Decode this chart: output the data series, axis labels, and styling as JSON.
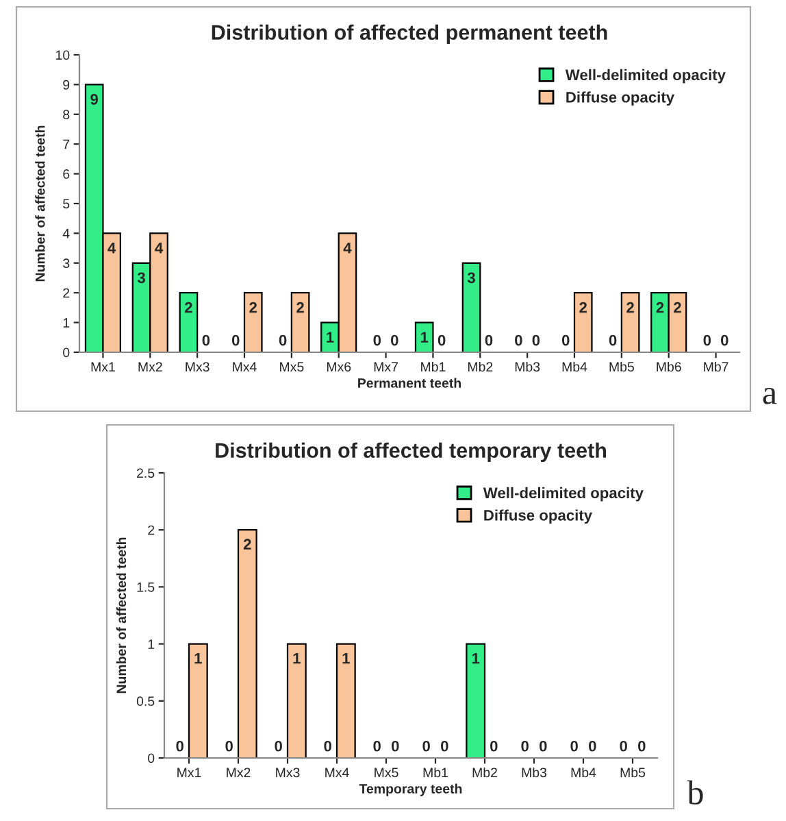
{
  "chart_data": [
    {
      "type": "bar",
      "title": "Distribution of affected permanent teeth",
      "xlabel": "Permanent teeth",
      "ylabel": "Number of affected teeth",
      "categories": [
        "Mx1",
        "Mx2",
        "Mx3",
        "Mx4",
        "Mx5",
        "Mx6",
        "Mx7",
        "Mb1",
        "Mb2",
        "Mb3",
        "Mb4",
        "Mb5",
        "Mb6",
        "Mb7"
      ],
      "series": [
        {
          "name": "Well-delimited opacity",
          "color": "#33ee88",
          "values": [
            9,
            3,
            2,
            0,
            0,
            1,
            0,
            1,
            3,
            0,
            0,
            0,
            2,
            0
          ]
        },
        {
          "name": "Diffuse opacity",
          "color": "#f9c49a",
          "values": [
            4,
            4,
            0,
            2,
            2,
            4,
            0,
            0,
            0,
            0,
            2,
            2,
            2,
            0
          ]
        }
      ],
      "ylim": [
        0,
        10
      ],
      "yticks": [
        0,
        1,
        2,
        3,
        4,
        5,
        6,
        7,
        8,
        9,
        10
      ],
      "data_labels": true,
      "legend": "top right",
      "grid": false,
      "annotations": [
        "a"
      ]
    },
    {
      "type": "bar",
      "title": "Distribution of affected temporary teeth",
      "xlabel": "Temporary teeth",
      "ylabel": "Number of affected teeth",
      "categories": [
        "Mx1",
        "Mx2",
        "Mx3",
        "Mx4",
        "Mx5",
        "Mb1",
        "Mb2",
        "Mb3",
        "Mb4",
        "Mb5"
      ],
      "series": [
        {
          "name": "Well-delimited opacity",
          "color": "#33ee88",
          "values": [
            0,
            0,
            0,
            0,
            0,
            0,
            1,
            0,
            0,
            0
          ]
        },
        {
          "name": "Diffuse opacity",
          "color": "#f9c49a",
          "values": [
            1,
            2,
            1,
            1,
            0,
            0,
            0,
            0,
            0,
            0
          ]
        }
      ],
      "ylim": [
        0,
        2.5
      ],
      "yticks": [
        0,
        0.5,
        1,
        1.5,
        2,
        2.5
      ],
      "data_labels": true,
      "legend": "top right",
      "grid": false,
      "annotations": [
        "b"
      ]
    }
  ]
}
